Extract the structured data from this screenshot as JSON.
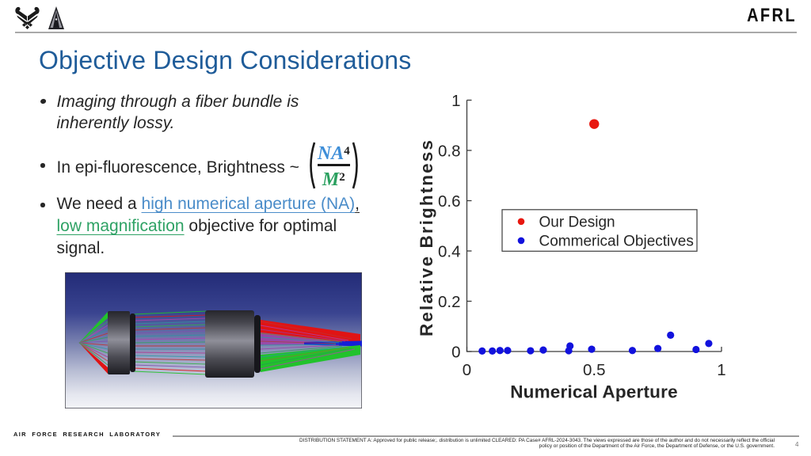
{
  "header": {
    "afrl_wordmark": "AFRL",
    "usaf_logo": "usaf-wings-logo",
    "ussf_logo": "ussf-delta-logo"
  },
  "title": "Objective Design Considerations",
  "bullets": {
    "b1": "Imaging through a fiber bundle is inherently lossy.",
    "b2_prefix": "In epi-fluorescence, Brightness ~",
    "formula": {
      "numerator": "NA",
      "numerator_exponent": "4",
      "denominator": "M",
      "denominator_exponent": "2"
    },
    "b3_pre": "We need a ",
    "b3_link_blue": "high numerical aperture (NA)",
    "b3_comma": ",",
    "b3_link_green": "low magnification",
    "b3_post": " objective for optimal signal."
  },
  "colors": {
    "title": "#1f5c99",
    "body_text": "#262626",
    "link_blue": "#4a8cc9",
    "link_green": "#2fa265",
    "formula_na_blue": "#3e8ed8",
    "formula_m_green": "#2aa05f",
    "chart_red": "#e8170f",
    "chart_blue": "#1212dd",
    "axis_color": "#3c3c3c",
    "header_line": "#a9a9a9"
  },
  "chart_data": {
    "type": "scatter",
    "title": "",
    "xlabel": "Numerical Aperture",
    "ylabel": "Relative Brightness",
    "xlim": [
      0,
      1
    ],
    "ylim": [
      0,
      1
    ],
    "grid": false,
    "legend_position": "center-left inside plot",
    "xticks": [
      {
        "v": 0,
        "label": "0"
      },
      {
        "v": 0.5,
        "label": "0.5"
      },
      {
        "v": 1,
        "label": "1"
      }
    ],
    "yticks": [
      {
        "v": 0,
        "label": "0"
      },
      {
        "v": 0.2,
        "label": "0.2"
      },
      {
        "v": 0.4,
        "label": "0.4"
      },
      {
        "v": 0.6,
        "label": "0.6"
      },
      {
        "v": 0.8,
        "label": "0.8"
      },
      {
        "v": 1,
        "label": "1"
      }
    ],
    "series": [
      {
        "name": "Our Design",
        "color": "#e8170f",
        "marker": "circle",
        "marker_r": 6.2,
        "points": [
          [
            0.5,
            0.905
          ]
        ]
      },
      {
        "name": "Commerical Objectives",
        "color": "#1212dd",
        "marker": "circle",
        "marker_r": 4.6,
        "points": [
          [
            0.06,
            0.002
          ],
          [
            0.1,
            0.002
          ],
          [
            0.13,
            0.004
          ],
          [
            0.16,
            0.004
          ],
          [
            0.25,
            0.003
          ],
          [
            0.3,
            0.006
          ],
          [
            0.4,
            0.003
          ],
          [
            0.405,
            0.022
          ],
          [
            0.49,
            0.009
          ],
          [
            0.65,
            0.004
          ],
          [
            0.75,
            0.012
          ],
          [
            0.8,
            0.065
          ],
          [
            0.9,
            0.008
          ],
          [
            0.95,
            0.032
          ]
        ]
      }
    ]
  },
  "footer": {
    "org": "AIR FORCE RESEARCH LABORATORY",
    "distribution_line1": "DISTRIBUTION STATEMENT A: Approved for public release;. distribution is unlimited CLEARED: PA Case# AFRL-2024-3043. The views expressed are those of the author and do not necessarily reflect the official",
    "distribution_line2": "policy or position of the Department of the Air Force, the Department of Defense, or the U.S. government.",
    "page_number": "4"
  }
}
